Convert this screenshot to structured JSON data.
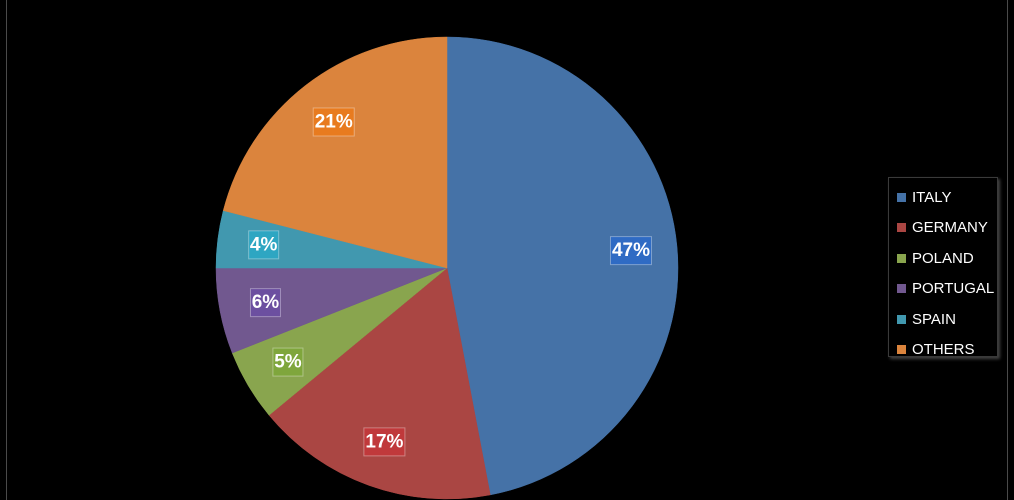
{
  "chart_data": {
    "type": "pie",
    "categories": [
      "ITALY",
      "GERMANY",
      "POLAND",
      "PORTUGAL",
      "SPAIN",
      "OTHERS"
    ],
    "values": [
      47,
      17,
      5,
      6,
      4,
      21
    ],
    "labels": [
      "47%",
      "17%",
      "5%",
      "6%",
      "4%",
      "21%"
    ],
    "colors": [
      "#4572A7",
      "#AA4643",
      "#89A54E",
      "#71588F",
      "#4198AF",
      "#DB843D"
    ],
    "label_colors": [
      "#2f6bc4",
      "#c0393b",
      "#7fa63c",
      "#6c4fa0",
      "#2ea6c2",
      "#e87b1f"
    ],
    "start_angle_deg": 0,
    "direction": "clockwise",
    "legend_position": "right",
    "background": "#000000"
  }
}
